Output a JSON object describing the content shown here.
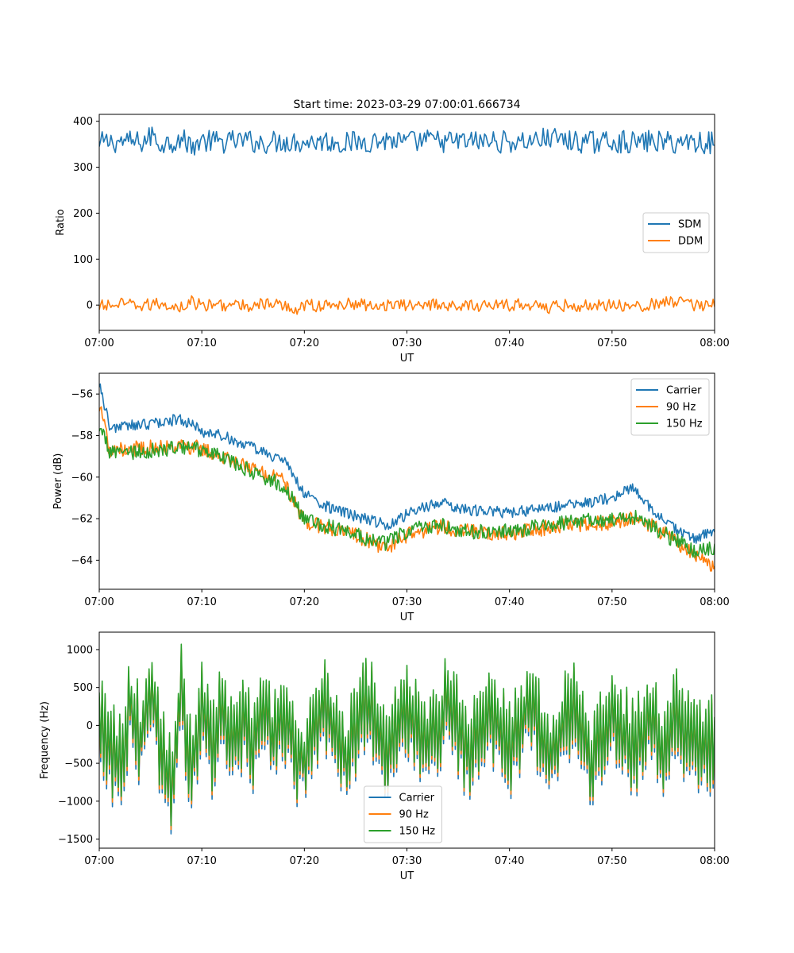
{
  "figure": {
    "title": "Start time: 2023-03-29 07:00:01.666734"
  },
  "chart_data": [
    {
      "type": "line",
      "xlabel": "UT",
      "ylabel": "Ratio",
      "ylim": [
        -55,
        415
      ],
      "yticks": [
        0,
        100,
        200,
        300,
        400
      ],
      "xlim": [
        "07:00",
        "08:00"
      ],
      "xticks": [
        "07:00",
        "07:10",
        "07:20",
        "07:30",
        "07:40",
        "07:50",
        "08:00"
      ],
      "legend": "center-right",
      "series": [
        {
          "name": "SDM",
          "color": "#1f77b4",
          "x": [
            "07:00",
            "07:02",
            "07:04",
            "07:05",
            "07:06",
            "07:08",
            "07:09",
            "07:10",
            "07:12",
            "07:14",
            "07:16",
            "07:18",
            "07:20",
            "07:22",
            "07:24",
            "07:26",
            "07:28",
            "07:30",
            "07:32",
            "07:34",
            "07:36",
            "07:38",
            "07:40",
            "07:42",
            "07:44",
            "07:46",
            "07:48",
            "07:50",
            "07:52",
            "07:54",
            "07:56",
            "07:58",
            "08:00"
          ],
          "values": [
            345,
            360,
            350,
            395,
            340,
            375,
            330,
            360,
            355,
            365,
            350,
            360,
            355,
            362,
            345,
            360,
            370,
            350,
            368,
            357,
            360,
            358,
            355,
            360,
            385,
            360,
            350,
            360,
            350,
            360,
            350,
            360,
            345
          ]
        },
        {
          "name": "DDM",
          "color": "#ff7f0e",
          "x": [
            "07:00",
            "07:02",
            "07:04",
            "07:06",
            "07:08",
            "07:09",
            "07:10",
            "07:12",
            "07:14",
            "07:16",
            "07:18",
            "07:19",
            "07:20",
            "07:22",
            "07:24",
            "07:26",
            "07:28",
            "07:30",
            "07:32",
            "07:34",
            "07:36",
            "07:38",
            "07:40",
            "07:42",
            "07:44",
            "07:46",
            "07:48",
            "07:50",
            "07:52",
            "07:54",
            "07:56",
            "07:58",
            "08:00"
          ],
          "values": [
            -10,
            5,
            -5,
            10,
            -15,
            20,
            -5,
            5,
            -10,
            10,
            -5,
            -30,
            5,
            -10,
            10,
            0,
            5,
            -5,
            10,
            0,
            -10,
            5,
            -5,
            10,
            -20,
            5,
            -10,
            10,
            -5,
            5,
            25,
            -5,
            20
          ]
        }
      ]
    },
    {
      "type": "line",
      "xlabel": "UT",
      "ylabel": "Power (dB)",
      "ylim": [
        -65.4,
        -55.0
      ],
      "yticks": [
        -64,
        -62,
        -60,
        -58,
        -56
      ],
      "xlim": [
        "07:00",
        "08:00"
      ],
      "xticks": [
        "07:00",
        "07:10",
        "07:20",
        "07:30",
        "07:40",
        "07:50",
        "08:00"
      ],
      "legend": "top-right",
      "series": [
        {
          "name": "Carrier",
          "color": "#1f77b4",
          "x": [
            "07:00",
            "07:01",
            "07:04",
            "07:08",
            "07:10",
            "07:12",
            "07:15",
            "07:18",
            "07:20",
            "07:22",
            "07:25",
            "07:28",
            "07:30",
            "07:33",
            "07:36",
            "07:40",
            "07:44",
            "07:48",
            "07:50",
            "07:52",
            "07:53",
            "07:54",
            "07:56",
            "07:58",
            "08:00"
          ],
          "values": [
            -55.4,
            -57.6,
            -57.5,
            -57.2,
            -57.8,
            -58.0,
            -58.6,
            -59.2,
            -60.8,
            -61.4,
            -61.9,
            -62.3,
            -61.8,
            -61.2,
            -61.6,
            -61.7,
            -61.5,
            -61.2,
            -61.0,
            -60.5,
            -61.2,
            -61.6,
            -62.4,
            -63.0,
            -62.6
          ]
        },
        {
          "name": "90 Hz",
          "color": "#ff7f0e",
          "x": [
            "07:00",
            "07:01",
            "07:04",
            "07:08",
            "07:10",
            "07:12",
            "07:15",
            "07:18",
            "07:20",
            "07:22",
            "07:25",
            "07:28",
            "07:30",
            "07:33",
            "07:36",
            "07:40",
            "07:44",
            "07:48",
            "07:50",
            "07:52",
            "07:54",
            "07:56",
            "07:58",
            "08:00"
          ],
          "values": [
            -56.5,
            -58.7,
            -58.6,
            -58.5,
            -58.6,
            -59.0,
            -59.6,
            -60.2,
            -62.2,
            -62.4,
            -62.8,
            -63.4,
            -62.8,
            -62.4,
            -62.6,
            -62.7,
            -62.4,
            -62.2,
            -62.2,
            -62.0,
            -62.4,
            -63.0,
            -63.8,
            -64.4
          ]
        },
        {
          "name": "150 Hz",
          "color": "#2ca02c",
          "x": [
            "07:00",
            "07:01",
            "07:04",
            "07:08",
            "07:10",
            "07:12",
            "07:15",
            "07:18",
            "07:20",
            "07:22",
            "07:25",
            "07:28",
            "07:30",
            "07:33",
            "07:36",
            "07:40",
            "07:44",
            "07:48",
            "07:50",
            "07:52",
            "07:54",
            "07:56",
            "07:58",
            "08:00"
          ],
          "values": [
            -57.5,
            -58.8,
            -58.8,
            -58.6,
            -58.7,
            -59.0,
            -59.8,
            -60.4,
            -62.0,
            -62.3,
            -62.8,
            -63.2,
            -62.6,
            -62.3,
            -62.6,
            -62.6,
            -62.3,
            -62.1,
            -62.1,
            -61.9,
            -62.4,
            -63.0,
            -63.5,
            -63.5
          ]
        }
      ]
    },
    {
      "type": "line",
      "xlabel": "UT",
      "ylabel": "Frequency (Hz)",
      "ylim": [
        -1620,
        1230
      ],
      "yticks": [
        -1500,
        -1000,
        -500,
        0,
        500,
        1000
      ],
      "xlim": [
        "07:00",
        "08:00"
      ],
      "xticks": [
        "07:00",
        "07:10",
        "07:20",
        "07:30",
        "07:40",
        "07:50",
        "08:00"
      ],
      "legend": "bottom-center",
      "series": [
        {
          "name": "Carrier",
          "color": "#1f77b4",
          "x": [
            "07:00",
            "07:01",
            "07:02",
            "07:03",
            "07:04",
            "07:05",
            "07:06",
            "07:07",
            "07:08",
            "07:09",
            "07:10",
            "07:11",
            "07:12",
            "07:13",
            "07:14",
            "07:15",
            "07:16",
            "07:17",
            "07:18",
            "07:19",
            "07:20",
            "07:22",
            "07:24",
            "07:26",
            "07:28",
            "07:30",
            "07:32",
            "07:34",
            "07:36",
            "07:38",
            "07:40",
            "07:42",
            "07:44",
            "07:46",
            "07:48",
            "07:50",
            "07:52",
            "07:54",
            "07:55",
            "07:56",
            "07:58",
            "08:00"
          ],
          "values": [
            0,
            -620,
            -1000,
            500,
            -400,
            1050,
            -600,
            -1500,
            700,
            -1120,
            300,
            -550,
            400,
            -700,
            150,
            -400,
            600,
            -450,
            200,
            -600,
            -900,
            500,
            -800,
            600,
            -650,
            350,
            -600,
            500,
            -700,
            300,
            -650,
            550,
            -750,
            450,
            -850,
            350,
            -600,
            250,
            -1000,
            300,
            -550,
            -400
          ]
        },
        {
          "name": "90 Hz",
          "color": "#ff7f0e",
          "x": [
            "07:00",
            "07:01",
            "07:02",
            "07:03",
            "07:04",
            "07:05",
            "07:06",
            "07:07",
            "07:08",
            "07:09",
            "07:10",
            "07:11",
            "07:12",
            "07:13",
            "07:14",
            "07:15",
            "07:16",
            "07:17",
            "07:18",
            "07:19",
            "07:20",
            "07:22",
            "07:24",
            "07:26",
            "07:28",
            "07:30",
            "07:32",
            "07:34",
            "07:36",
            "07:38",
            "07:40",
            "07:42",
            "07:44",
            "07:46",
            "07:48",
            "07:50",
            "07:52",
            "07:54",
            "07:55",
            "07:56",
            "07:58",
            "08:00"
          ],
          "values": [
            50,
            -560,
            -950,
            560,
            -350,
            1080,
            -560,
            -1450,
            760,
            -1080,
            350,
            -500,
            450,
            -650,
            200,
            -350,
            650,
            -400,
            250,
            -560,
            -860,
            550,
            -760,
            650,
            -600,
            400,
            -560,
            550,
            -660,
            350,
            -600,
            600,
            -700,
            500,
            -800,
            400,
            -560,
            300,
            -960,
            350,
            -500,
            -350
          ]
        },
        {
          "name": "150 Hz",
          "color": "#2ca02c",
          "x": [
            "07:00",
            "07:01",
            "07:02",
            "07:03",
            "07:04",
            "07:05",
            "07:06",
            "07:07",
            "07:08",
            "07:09",
            "07:10",
            "07:11",
            "07:12",
            "07:13",
            "07:14",
            "07:15",
            "07:16",
            "07:17",
            "07:18",
            "07:19",
            "07:20",
            "07:22",
            "07:24",
            "07:26",
            "07:28",
            "07:30",
            "07:32",
            "07:34",
            "07:36",
            "07:38",
            "07:40",
            "07:42",
            "07:44",
            "07:46",
            "07:48",
            "07:50",
            "07:52",
            "07:54",
            "07:55",
            "07:56",
            "07:58",
            "08:00"
          ],
          "values": [
            100,
            -500,
            -900,
            620,
            -300,
            1100,
            -500,
            -1400,
            820,
            -1040,
            400,
            -450,
            500,
            -600,
            250,
            -300,
            700,
            -350,
            300,
            -520,
            -820,
            600,
            -720,
            700,
            -550,
            450,
            -520,
            600,
            -620,
            400,
            -550,
            650,
            -650,
            550,
            -750,
            450,
            -520,
            350,
            -920,
            400,
            -450,
            -300
          ]
        }
      ]
    }
  ]
}
